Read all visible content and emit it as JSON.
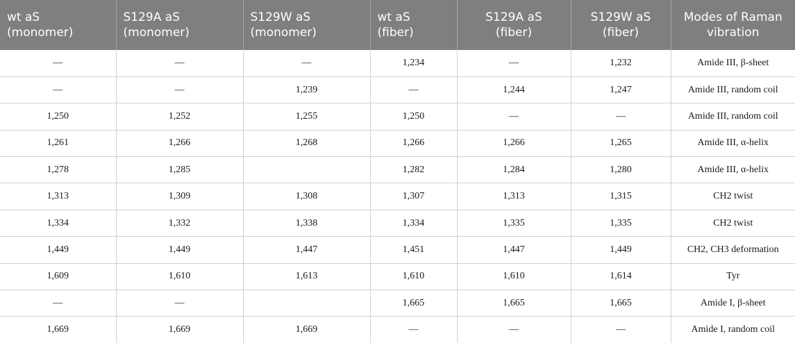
{
  "table": {
    "headers": [
      {
        "line1": "wt aS",
        "line2": "(monomer)",
        "align": "left"
      },
      {
        "line1": "S129A aS",
        "line2": "(monomer)",
        "align": "left"
      },
      {
        "line1": "S129W aS",
        "line2": "(monomer)",
        "align": "left"
      },
      {
        "line1": "wt aS",
        "line2": "(fiber)",
        "align": "left"
      },
      {
        "line1": "S129A aS",
        "line2": "(fiber)",
        "align": "center"
      },
      {
        "line1": "S129W aS",
        "line2": "(fiber)",
        "align": "center"
      },
      {
        "line1": "Modes of Raman",
        "line2": "vibration",
        "align": "center"
      }
    ],
    "rows": [
      [
        "—",
        "—",
        "—",
        "1,234",
        "—",
        "1,232",
        "Amide III, β-sheet"
      ],
      [
        "—",
        "—",
        "1,239",
        "—",
        "1,244",
        "1,247",
        "Amide III, random coil"
      ],
      [
        "1,250",
        "1,252",
        "1,255",
        "1,250",
        "—",
        "—",
        "Amide III, random coil"
      ],
      [
        "1,261",
        "1,266",
        "1,268",
        "1,266",
        "1,266",
        "1,265",
        "Amide III, α-helix"
      ],
      [
        "1,278",
        "1,285",
        "",
        "1,282",
        "1,284",
        "1,280",
        "Amide III, α-helix"
      ],
      [
        "1,313",
        "1,309",
        "1,308",
        "1,307",
        "1,313",
        "1,315",
        "CH2 twist"
      ],
      [
        "1,334",
        "1,332",
        "1,338",
        "1,334",
        "1,335",
        "1,335",
        "CH2 twist"
      ],
      [
        "1,449",
        "1,449",
        "1,447",
        "1,451",
        "1,447",
        "1,449",
        "CH2, CH3 deformation"
      ],
      [
        "1,609",
        "1,610",
        "1,613",
        "1,610",
        "1,610",
        "1,614",
        "Tyr"
      ],
      [
        "—",
        "—",
        "",
        "1,665",
        "1,665",
        "1,665",
        "Amide I, β-sheet"
      ],
      [
        "1,669",
        "1,669",
        "1,669",
        "—",
        "—",
        "—",
        "Amide I, random coil"
      ]
    ]
  }
}
